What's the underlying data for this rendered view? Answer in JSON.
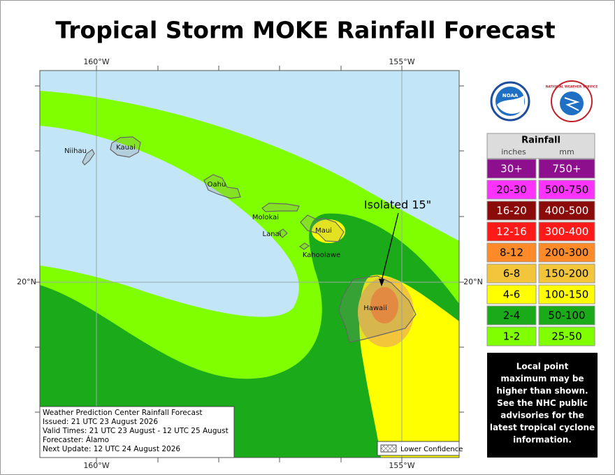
{
  "title": "Tropical Storm MOKE Rainfall Forecast",
  "map": {
    "lon_labels": {
      "top": [
        "160°W",
        "155°W"
      ],
      "bottom": [
        "160°W",
        "155°W"
      ]
    },
    "lat_labels": {
      "left": "20°N",
      "right": "20°N"
    },
    "islands": [
      "Niihau",
      "Kauai",
      "Oahu",
      "Molokai",
      "Lanai",
      "Maui",
      "Kahoolawe",
      "Hawaii"
    ],
    "annotation": "Isolated 15\"",
    "info_box": [
      "Weather Prediction Center Rainfall Forecast",
      "Issued: 21 UTC 23 August 2026",
      "Valid Times: 21 UTC 23 August - 12 UTC 25 August",
      "Forecaster: Álamo",
      "Next Update: 12 UTC 24 August 2026"
    ],
    "lower_confidence": "Lower Confidence"
  },
  "logos": {
    "noaa": "NOAA",
    "nws": "NATIONAL WEATHER SERVICE"
  },
  "legend": {
    "title": "Rainfall",
    "units": [
      "inches",
      "mm"
    ],
    "rows": [
      {
        "inches": "30+",
        "mm": "750+",
        "color": "#8e0f8e"
      },
      {
        "inches": "20-30",
        "mm": "500-750",
        "color": "#ff33ff"
      },
      {
        "inches": "16-20",
        "mm": "400-500",
        "color": "#8b0a0a"
      },
      {
        "inches": "12-16",
        "mm": "300-400",
        "color": "#ff1a1a"
      },
      {
        "inches": "8-12",
        "mm": "200-300",
        "color": "#ff8a2a"
      },
      {
        "inches": "6-8",
        "mm": "150-200",
        "color": "#f2c53a"
      },
      {
        "inches": "4-6",
        "mm": "100-150",
        "color": "#ffff00"
      },
      {
        "inches": "2-4",
        "mm": "50-100",
        "color": "#1aaa1a"
      },
      {
        "inches": "1-2",
        "mm": "25-50",
        "color": "#80ff00"
      }
    ]
  },
  "note": [
    "Local point",
    "maximum may be",
    "higher than shown.",
    "See the NHC public",
    "advisories for the",
    "latest tropical cyclone",
    "information."
  ]
}
